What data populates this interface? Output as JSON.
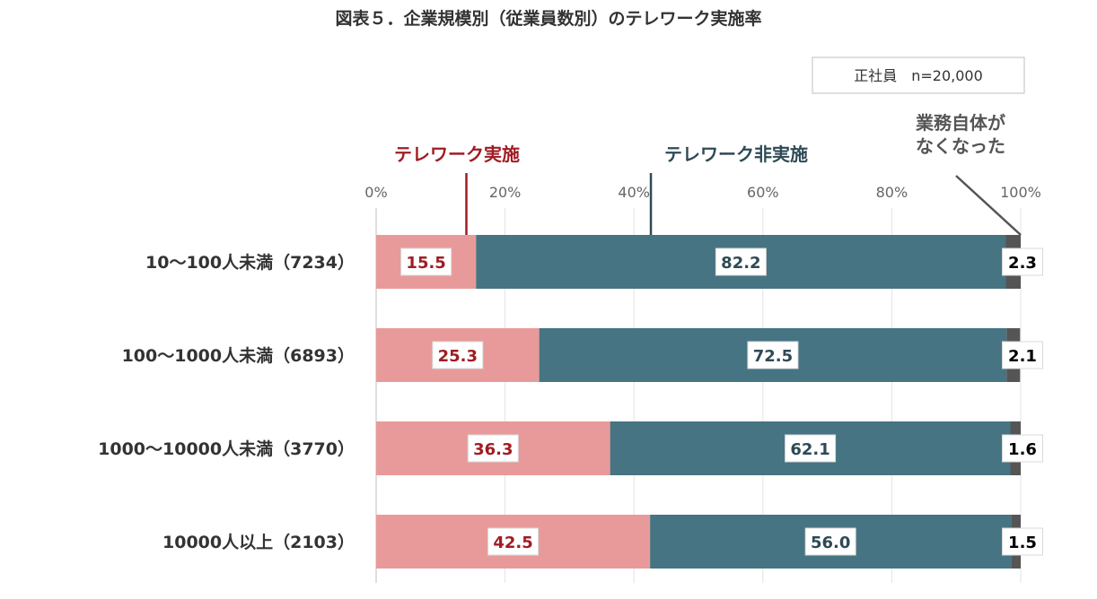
{
  "chart_data": {
    "type": "bar",
    "orientation": "horizontal",
    "stacked": true,
    "title": "図表５．企業規模別（従業員数別）のテレワーク実施率",
    "sample_note": "正社員　n=20,000",
    "xlim": [
      0,
      100
    ],
    "x_ticks": [
      "0%",
      "20%",
      "40%",
      "60%",
      "80%",
      "100%"
    ],
    "categories": [
      "10～100人未満（7234）",
      "100～1000人未満（6893）",
      "1000～10000人未満（3770）",
      "10000人以上（2103）"
    ],
    "series": [
      {
        "name": "テレワーク実施",
        "color": "#e89a9a",
        "label_color": "#a01c24",
        "values": [
          15.5,
          25.3,
          36.3,
          42.5
        ]
      },
      {
        "name": "テレワーク非実施",
        "color": "#467482",
        "label_color": "#2e4a55",
        "values": [
          82.2,
          72.5,
          62.1,
          56.0
        ]
      },
      {
        "name": "業務自体が\nなくなった",
        "color": "#555555",
        "label_color": "#000000",
        "values": [
          2.3,
          2.1,
          1.6,
          1.5
        ]
      }
    ],
    "grid": true,
    "legend_placement": "above bars, with pointer lines"
  }
}
